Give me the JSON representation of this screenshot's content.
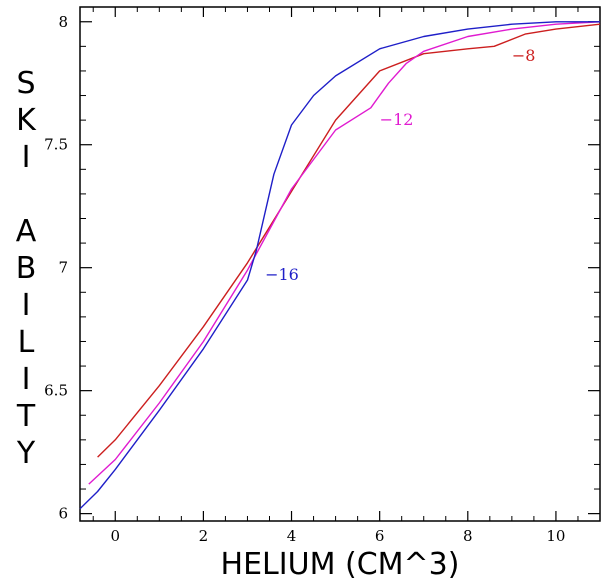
{
  "chart_data": {
    "type": "line",
    "title": "",
    "xlabel": "HELIUM (CM^3)",
    "ylabel": "SKI ABILITY",
    "ylabel_letters": [
      "S",
      "K",
      "I",
      "",
      "A",
      "B",
      "I",
      "L",
      "I",
      "T",
      "Y"
    ],
    "xlim": [
      -0.8,
      11.0
    ],
    "ylim": [
      5.97,
      8.06
    ],
    "x_ticks": [
      0,
      2,
      4,
      6,
      8,
      10
    ],
    "x_tick_labels": [
      "0",
      "2",
      "4",
      "6",
      "8",
      "10"
    ],
    "y_ticks": [
      6,
      6.5,
      7,
      7.5,
      8
    ],
    "y_tick_labels": [
      "6",
      "6.5",
      "7",
      "7.5",
      "8"
    ],
    "grid": false,
    "series": [
      {
        "name": "-8",
        "label": "−8",
        "color": "#cc1f1f",
        "x": [
          -0.4,
          0.0,
          1.0,
          2.0,
          3.0,
          4.0,
          5.0,
          6.0,
          7.0,
          8.0,
          8.6,
          9.3,
          10.0,
          11.0
        ],
        "y": [
          6.23,
          6.3,
          6.52,
          6.76,
          7.02,
          7.31,
          7.6,
          7.8,
          7.87,
          7.89,
          7.9,
          7.95,
          7.97,
          7.99
        ],
        "label_at": [
          9.0,
          7.86
        ]
      },
      {
        "name": "-12",
        "label": "−12",
        "color": "#e01bd0",
        "x": [
          -0.6,
          0.0,
          1.0,
          2.0,
          3.0,
          4.0,
          5.0,
          5.8,
          6.2,
          6.6,
          7.0,
          8.0,
          9.0,
          10.0,
          11.0
        ],
        "y": [
          6.12,
          6.22,
          6.45,
          6.7,
          6.99,
          7.32,
          7.56,
          7.65,
          7.75,
          7.83,
          7.88,
          7.94,
          7.97,
          7.99,
          8.0
        ],
        "label_at": [
          6.0,
          7.6
        ]
      },
      {
        "name": "-16",
        "label": "−16",
        "color": "#1f1fc8",
        "x": [
          -0.8,
          -0.4,
          0.0,
          1.0,
          2.0,
          3.0,
          3.2,
          3.6,
          4.0,
          4.5,
          5.0,
          6.0,
          7.0,
          8.0,
          9.0,
          10.0,
          11.0
        ],
        "y": [
          6.02,
          6.09,
          6.18,
          6.42,
          6.67,
          6.95,
          7.07,
          7.38,
          7.58,
          7.7,
          7.78,
          7.89,
          7.94,
          7.97,
          7.99,
          8.0,
          8.0
        ],
        "label_at": [
          3.4,
          6.97
        ]
      }
    ]
  }
}
